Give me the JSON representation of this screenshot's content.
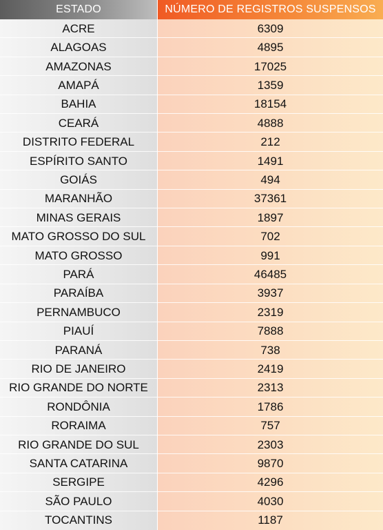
{
  "chart_data": {
    "type": "table",
    "columns": [
      "ESTADO",
      "NÚMERO DE REGISTROS SUSPENSOS"
    ],
    "rows": [
      {
        "estado": "ACRE",
        "registros": 6309
      },
      {
        "estado": "ALAGOAS",
        "registros": 4895
      },
      {
        "estado": "AMAZONAS",
        "registros": 17025
      },
      {
        "estado": "AMAPÁ",
        "registros": 1359
      },
      {
        "estado": "BAHIA",
        "registros": 18154
      },
      {
        "estado": "CEARÁ",
        "registros": 4888
      },
      {
        "estado": "DISTRITO FEDERAL",
        "registros": 212
      },
      {
        "estado": "ESPÍRITO SANTO",
        "registros": 1491
      },
      {
        "estado": "GOIÁS",
        "registros": 494
      },
      {
        "estado": "MARANHÃO",
        "registros": 37361
      },
      {
        "estado": "MINAS GERAIS",
        "registros": 1897
      },
      {
        "estado": "MATO GROSSO DO SUL",
        "registros": 702
      },
      {
        "estado": "MATO GROSSO",
        "registros": 991
      },
      {
        "estado": "PARÁ",
        "registros": 46485
      },
      {
        "estado": "PARAÍBA",
        "registros": 3937
      },
      {
        "estado": "PERNAMBUCO",
        "registros": 2319
      },
      {
        "estado": "PIAUÍ",
        "registros": 7888
      },
      {
        "estado": "PARANÁ",
        "registros": 738
      },
      {
        "estado": "RIO DE JANEIRO",
        "registros": 2419
      },
      {
        "estado": "RIO GRANDE DO NORTE",
        "registros": 2313
      },
      {
        "estado": "RONDÔNIA",
        "registros": 1786
      },
      {
        "estado": "RORAIMA",
        "registros": 757
      },
      {
        "estado": "RIO GRANDE DO SUL",
        "registros": 2303
      },
      {
        "estado": "SANTA CATARINA",
        "registros": 9870
      },
      {
        "estado": "SERGIPE",
        "registros": 4296
      },
      {
        "estado": "SÃO PAULO",
        "registros": 4030
      },
      {
        "estado": "TOCANTINS",
        "registros": 1187
      }
    ]
  },
  "colors": {
    "header_state": "#7a7a7a",
    "header_count": "#f26a2a",
    "body_state": "#ececec",
    "body_count": "#fcdcc1",
    "text": "#111111"
  }
}
